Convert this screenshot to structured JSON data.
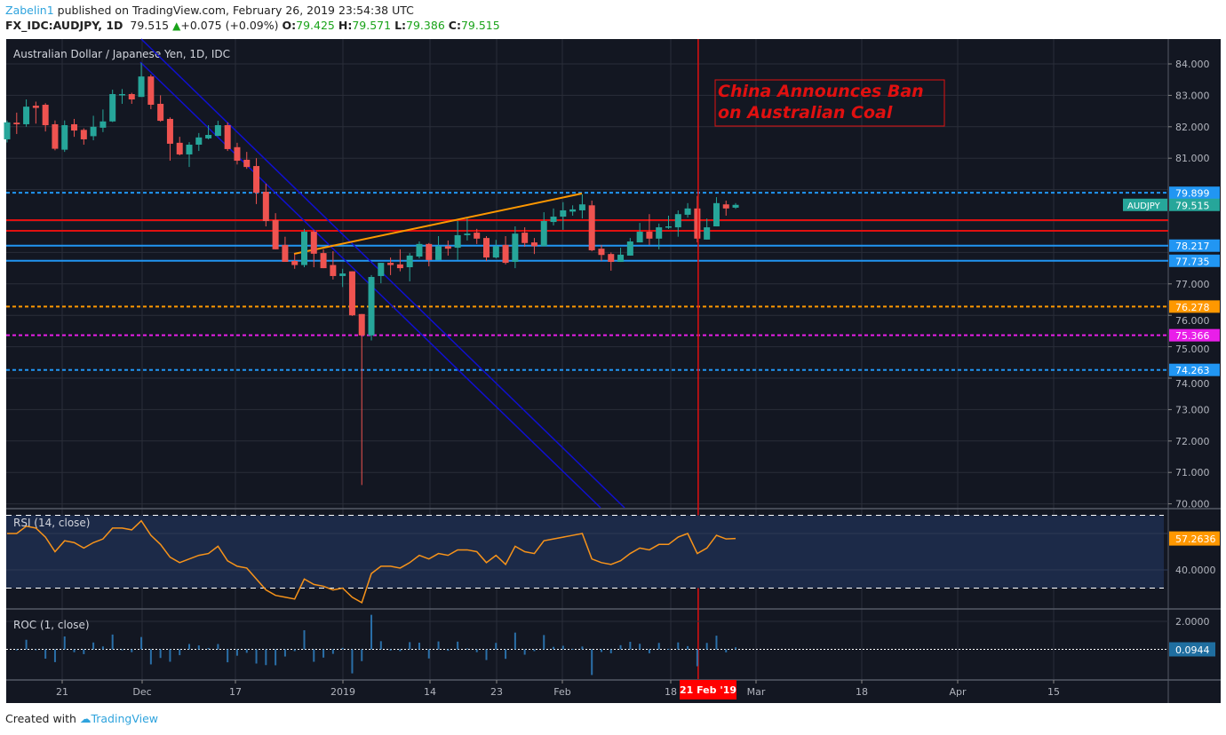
{
  "header": {
    "author": "Zabelin1",
    "published": "published on TradingView.com, February 26, 2019 23:54:38 UTC",
    "symbol": "FX_IDC:AUDJPY, 1D",
    "last": "79.515",
    "change": "+0.075 (+0.09%)",
    "o_label": "O:",
    "o": "79.425",
    "h_label": "H:",
    "h": "79.571",
    "l_label": "L:",
    "l": "79.386",
    "c_label": "C:",
    "c": "79.515"
  },
  "footer": {
    "created": "Created with",
    "brand": "TradingView"
  },
  "colors": {
    "bg": "#131722",
    "up": "#26a69a",
    "down": "#ef5350",
    "grid": "#2a2e39",
    "axis_text": "#b2b5be",
    "rsi": "#f7931a",
    "roc": "#2a6fa8"
  },
  "chart_data": {
    "type": "candlestick",
    "title": "Australian Dollar / Japanese Yen, 1D, IDC",
    "symbol_tag": "AUDJPY",
    "ylim": [
      70,
      84.6
    ],
    "y_ticks": [
      "84.000",
      "83.000",
      "82.000",
      "81.000",
      "77.000",
      "76.000",
      "75.000",
      "74.000",
      "73.000",
      "72.000",
      "71.000",
      "70.000"
    ],
    "x_ticks": [
      "21",
      "Dec",
      "17",
      "2019",
      "14",
      "23",
      "Feb",
      "18",
      "Mar",
      "18",
      "Apr",
      "15"
    ],
    "crosshair_date": "21 Feb '19",
    "annotation": [
      "China Announces Ban",
      "on Australian Coal"
    ],
    "annotation_candle_index": 72,
    "last_price_label": "79.515",
    "ohlc": [
      [
        81.6,
        82.2,
        81.5,
        82.14
      ],
      [
        82.13,
        82.45,
        81.77,
        82.08
      ],
      [
        82.08,
        82.87,
        82.0,
        82.64
      ],
      [
        82.67,
        82.8,
        82.1,
        82.6
      ],
      [
        82.7,
        82.75,
        81.85,
        82.05
      ],
      [
        82.08,
        82.2,
        81.25,
        81.3
      ],
      [
        81.27,
        82.2,
        81.2,
        82.05
      ],
      [
        82.08,
        82.25,
        81.68,
        81.88
      ],
      [
        81.9,
        81.95,
        81.43,
        81.6
      ],
      [
        81.7,
        82.35,
        81.57,
        82.0
      ],
      [
        81.97,
        82.55,
        81.83,
        82.17
      ],
      [
        82.17,
        83.18,
        82.15,
        83.04
      ],
      [
        83.0,
        83.2,
        82.73,
        83.04
      ],
      [
        83.04,
        83.08,
        82.73,
        82.87
      ],
      [
        82.95,
        84.03,
        82.95,
        83.6
      ],
      [
        83.6,
        83.66,
        82.56,
        82.7
      ],
      [
        82.73,
        83.0,
        82.16,
        82.19
      ],
      [
        82.25,
        82.3,
        80.92,
        81.46
      ],
      [
        81.49,
        81.68,
        81.09,
        81.12
      ],
      [
        81.12,
        81.51,
        80.72,
        81.43
      ],
      [
        81.43,
        81.8,
        81.23,
        81.66
      ],
      [
        81.63,
        82.05,
        81.6,
        81.74
      ],
      [
        81.71,
        82.19,
        81.7,
        82.05
      ],
      [
        82.05,
        82.14,
        81.23,
        81.29
      ],
      [
        81.35,
        81.49,
        80.8,
        80.92
      ],
      [
        80.95,
        81.2,
        80.66,
        80.72
      ],
      [
        80.75,
        81.0,
        79.54,
        79.9
      ],
      [
        79.93,
        80.19,
        78.83,
        79.0
      ],
      [
        79.03,
        79.25,
        78.1,
        78.1
      ],
      [
        78.24,
        78.5,
        77.7,
        77.7
      ],
      [
        77.73,
        77.95,
        77.48,
        77.6
      ],
      [
        77.6,
        78.75,
        77.53,
        78.66
      ],
      [
        78.66,
        78.72,
        77.53,
        77.96
      ],
      [
        77.98,
        78.1,
        77.5,
        77.5
      ],
      [
        77.6,
        78.04,
        77.14,
        77.25
      ],
      [
        77.25,
        77.48,
        76.9,
        77.33
      ],
      [
        77.4,
        77.4,
        75.98,
        76.0
      ],
      [
        76.04,
        76.04,
        70.6,
        75.36
      ],
      [
        75.36,
        77.28,
        75.2,
        77.22
      ],
      [
        77.25,
        77.67,
        77.02,
        77.67
      ],
      [
        77.67,
        77.84,
        77.28,
        77.6
      ],
      [
        77.62,
        78.1,
        77.4,
        77.5
      ],
      [
        77.53,
        77.98,
        77.08,
        77.9
      ],
      [
        77.87,
        78.35,
        77.81,
        78.27
      ],
      [
        78.27,
        78.3,
        77.56,
        77.76
      ],
      [
        77.76,
        78.52,
        77.76,
        78.2
      ],
      [
        78.2,
        78.38,
        77.9,
        78.12
      ],
      [
        78.15,
        79.0,
        77.76,
        78.55
      ],
      [
        78.55,
        79.08,
        78.38,
        78.6
      ],
      [
        78.63,
        78.75,
        78.27,
        78.44
      ],
      [
        78.46,
        78.52,
        77.73,
        77.84
      ],
      [
        77.84,
        78.4,
        77.81,
        78.2
      ],
      [
        78.24,
        78.52,
        77.62,
        77.67
      ],
      [
        77.7,
        78.83,
        77.5,
        78.6
      ],
      [
        78.63,
        78.8,
        78.18,
        78.3
      ],
      [
        78.32,
        78.46,
        77.95,
        78.2
      ],
      [
        78.2,
        79.28,
        78.2,
        79.0
      ],
      [
        78.97,
        79.4,
        78.86,
        79.14
      ],
      [
        79.14,
        79.6,
        78.72,
        79.34
      ],
      [
        79.3,
        79.5,
        79.17,
        79.37
      ],
      [
        79.34,
        79.85,
        79.08,
        79.53
      ],
      [
        79.5,
        79.65,
        78.04,
        78.07
      ],
      [
        78.12,
        78.24,
        77.73,
        77.92
      ],
      [
        77.95,
        78.0,
        77.42,
        77.7
      ],
      [
        77.7,
        78.15,
        77.7,
        77.93
      ],
      [
        77.9,
        78.46,
        77.9,
        78.35
      ],
      [
        78.32,
        78.94,
        78.32,
        78.66
      ],
      [
        78.66,
        79.22,
        78.24,
        78.44
      ],
      [
        78.44,
        78.92,
        78.1,
        78.8
      ],
      [
        78.8,
        79.17,
        78.75,
        78.83
      ],
      [
        78.8,
        79.34,
        78.5,
        79.22
      ],
      [
        79.2,
        79.57,
        79.11,
        79.4
      ],
      [
        79.4,
        79.8,
        78.32,
        78.44
      ],
      [
        78.41,
        79.08,
        78.41,
        78.8
      ],
      [
        78.83,
        79.76,
        78.83,
        79.57
      ],
      [
        79.53,
        79.65,
        79.17,
        79.4
      ],
      [
        79.425,
        79.571,
        79.386,
        79.515
      ]
    ],
    "levels": [
      {
        "price": 79.899,
        "label": "79.899",
        "color": "#2196f3",
        "style": "dashed"
      },
      {
        "price": 79.03,
        "label": "",
        "color": "#e01010",
        "style": "solid"
      },
      {
        "price": 78.69,
        "label": "",
        "color": "#e01010",
        "style": "solid"
      },
      {
        "price": 78.217,
        "label": "78.217",
        "color": "#2196f3",
        "style": "solid"
      },
      {
        "price": 77.735,
        "label": "77.735",
        "color": "#2196f3",
        "style": "solid"
      },
      {
        "price": 76.278,
        "label": "76.278",
        "color": "#ff9800",
        "style": "dashed"
      },
      {
        "price": 75.366,
        "label": "75.366",
        "color": "#e91ee9",
        "style": "dashed"
      },
      {
        "price": 74.263,
        "label": "74.263",
        "color": "#2196f3",
        "style": "dashed"
      }
    ],
    "indicators": {
      "rsi": {
        "title": "RSI (14, close)",
        "ylim": [
          20,
          70
        ],
        "bands": [
          30,
          70
        ],
        "ticks": [
          "40.0000"
        ],
        "last_label": "57.2636",
        "values": [
          60,
          60,
          64,
          63,
          58,
          50,
          56,
          55,
          52,
          55,
          57,
          63,
          63,
          62,
          67,
          59,
          54,
          47,
          44,
          46,
          48,
          49,
          53,
          45,
          42,
          41,
          35,
          29,
          26,
          25,
          24,
          35,
          32,
          31,
          29,
          30,
          25,
          22,
          38,
          42,
          42,
          41,
          44,
          48,
          46,
          49,
          48,
          51,
          51,
          50,
          44,
          48,
          43,
          53,
          50,
          49,
          56,
          57,
          58,
          59,
          60,
          46,
          44,
          43,
          45,
          49,
          52,
          51,
          54,
          54,
          58,
          60,
          49,
          52,
          59,
          57,
          57.26
        ]
      },
      "roc": {
        "title": "ROC (1, close)",
        "ticks": [
          "2.0000"
        ],
        "last_label": "0.0944"
      }
    }
  }
}
